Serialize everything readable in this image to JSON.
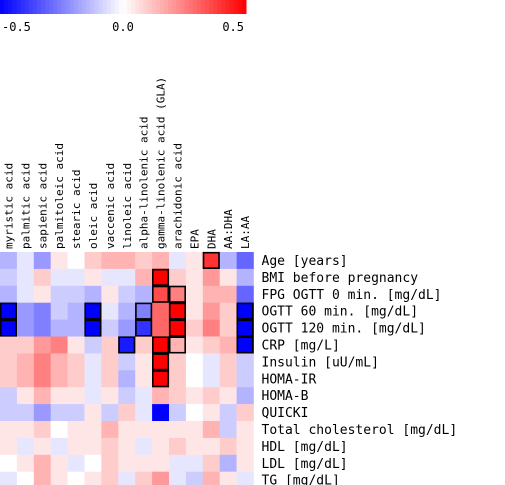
{
  "chart_data": {
    "type": "heatmap",
    "colorbar": {
      "min": -0.5,
      "mid": 0.0,
      "max": 0.5,
      "tick_labels": [
        "-0.5",
        "0.0",
        "0.5"
      ],
      "low_color": "#0000ff",
      "mid_color": "#ffffff",
      "high_color": "#ff0000"
    },
    "columns": [
      "myristic acid",
      "palmitic acid",
      "sapienic acid",
      "palmitoleic acid",
      "stearic acid",
      "oleic acid",
      "vaccenic acid",
      "linoleic acid",
      "alpha-linolenic acid",
      "gamma-linolenic acid (GLA)",
      "arachidonic acid",
      "EPA",
      "DHA",
      "AA:DHA",
      "LA:AA"
    ],
    "rows": [
      "Age [years]",
      "BMI before pregnancy",
      "FPG OGTT 0 min. [mg/dL]",
      "OGTT 60 min. [mg/dL]",
      "OGTT 120 min. [mg/dL]",
      "CRP [mg/L]",
      "Insulin [uU/mL]",
      "HOMA-IR",
      "HOMA-B",
      "QUICKI",
      "Total cholesterol [mg/dL]",
      "HDL [mg/dL]",
      "LDL [mg/dL]",
      "TG [mg/dL]"
    ],
    "values": [
      [
        -0.15,
        -0.05,
        -0.2,
        0.05,
        0.0,
        0.1,
        0.15,
        0.15,
        0.1,
        0.15,
        -0.05,
        0.05,
        0.4,
        -0.15,
        -0.3
      ],
      [
        -0.1,
        -0.05,
        0.1,
        -0.05,
        -0.05,
        0.05,
        -0.05,
        -0.05,
        0.15,
        0.5,
        0.1,
        0.05,
        0.2,
        0.05,
        -0.15
      ],
      [
        -0.15,
        -0.05,
        0.05,
        -0.1,
        -0.1,
        -0.15,
        0.05,
        -0.1,
        -0.15,
        0.35,
        0.25,
        0.05,
        0.15,
        0.15,
        -0.3
      ],
      [
        -0.5,
        -0.2,
        -0.25,
        -0.1,
        -0.15,
        -0.5,
        -0.05,
        -0.15,
        -0.25,
        0.3,
        0.55,
        0.05,
        0.2,
        0.1,
        -0.55
      ],
      [
        -0.55,
        -0.2,
        -0.25,
        -0.15,
        -0.15,
        -0.5,
        -0.1,
        -0.2,
        -0.4,
        0.3,
        0.6,
        0.1,
        0.25,
        0.1,
        -0.55
      ],
      [
        0.1,
        0.1,
        0.2,
        0.25,
        0.05,
        -0.1,
        0.1,
        -0.45,
        0.1,
        0.5,
        0.15,
        0.05,
        0.1,
        0.15,
        -0.5
      ],
      [
        0.1,
        0.15,
        0.25,
        0.15,
        0.1,
        -0.05,
        0.1,
        -0.1,
        0.05,
        0.55,
        0.1,
        0.0,
        -0.05,
        0.1,
        -0.1
      ],
      [
        0.1,
        0.15,
        0.25,
        0.15,
        0.1,
        -0.05,
        0.1,
        -0.15,
        0.05,
        0.55,
        0.1,
        0.0,
        -0.05,
        0.1,
        -0.1
      ],
      [
        -0.1,
        0.05,
        0.15,
        0.05,
        0.05,
        -0.05,
        0.05,
        -0.1,
        -0.05,
        0.15,
        0.1,
        0.05,
        0.1,
        0.05,
        -0.15
      ],
      [
        -0.1,
        -0.1,
        -0.2,
        -0.1,
        -0.1,
        0.05,
        -0.1,
        0.1,
        -0.05,
        -0.55,
        -0.1,
        0.0,
        0.05,
        -0.1,
        0.1
      ],
      [
        0.05,
        0.05,
        0.1,
        0.0,
        0.05,
        0.05,
        0.15,
        0.05,
        0.05,
        0.05,
        0.05,
        0.05,
        0.15,
        -0.1,
        0.05
      ],
      [
        0.05,
        -0.05,
        0.05,
        -0.05,
        0.05,
        0.05,
        0.1,
        0.05,
        -0.05,
        0.05,
        0.1,
        0.05,
        0.05,
        0.1,
        0.05
      ],
      [
        0.0,
        0.05,
        0.15,
        0.05,
        -0.05,
        0.0,
        0.1,
        0.05,
        0.05,
        0.05,
        -0.05,
        -0.05,
        0.1,
        -0.15,
        0.05
      ],
      [
        -0.05,
        0.0,
        0.15,
        0.05,
        0.0,
        0.05,
        0.1,
        -0.05,
        0.1,
        0.2,
        -0.05,
        -0.1,
        0.15,
        0.05,
        -0.05
      ]
    ],
    "highlighted_cells": [
      [
        0,
        12
      ],
      [
        1,
        9
      ],
      [
        2,
        9
      ],
      [
        2,
        10
      ],
      [
        3,
        0
      ],
      [
        3,
        5
      ],
      [
        3,
        8
      ],
      [
        3,
        10
      ],
      [
        3,
        14
      ],
      [
        4,
        0
      ],
      [
        4,
        5
      ],
      [
        4,
        8
      ],
      [
        4,
        10
      ],
      [
        4,
        14
      ],
      [
        5,
        7
      ],
      [
        5,
        9
      ],
      [
        5,
        10
      ],
      [
        5,
        14
      ],
      [
        6,
        9
      ],
      [
        7,
        9
      ]
    ]
  }
}
